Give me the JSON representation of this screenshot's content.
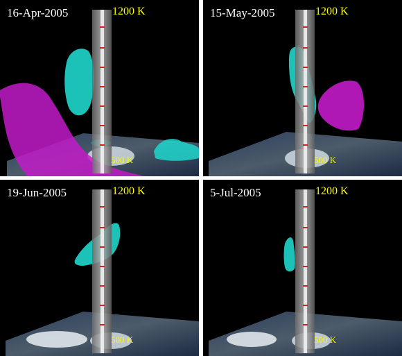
{
  "panels": [
    {
      "date": "16-Apr-2005",
      "top_label": "1200 K",
      "bottom_label": "500 K"
    },
    {
      "date": "15-May-2005",
      "top_label": "1200 K",
      "bottom_label": "500 K"
    },
    {
      "date": "19-Jun-2005",
      "top_label": "1200 K",
      "bottom_label": "500 K"
    },
    {
      "date": "5-Jul-2005",
      "top_label": "1200 K",
      "bottom_label": "500 K"
    }
  ],
  "colors": {
    "vortex_isosurface": "#1fd6cc",
    "anticyclone_isosurface": "#c21bc8",
    "label_text": "#ffff00",
    "date_text": "#ffffff",
    "background": "#000000"
  }
}
